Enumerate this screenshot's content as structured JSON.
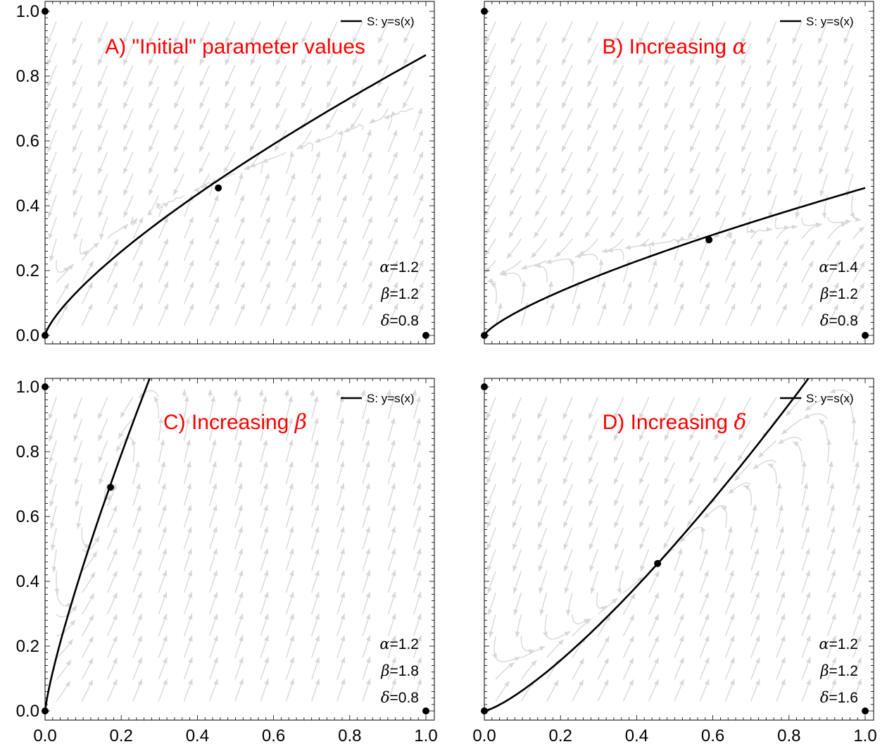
{
  "chart_data": [
    {
      "type": "line",
      "title": "A) \"Initial\" parameter values",
      "legend_label": "S: y=s(x)",
      "legend_position": "top-right",
      "params": [
        {
          "symbol": "α",
          "value": "=1.2"
        },
        {
          "symbol": "β",
          "value": "=1.2"
        },
        {
          "symbol": "δ",
          "value": "=0.8"
        }
      ],
      "xlim": [
        0,
        1
      ],
      "ylim": [
        0,
        1
      ],
      "x_ticks": [],
      "y_ticks": [
        "0.0",
        "0.2",
        "0.4",
        "0.6",
        "0.8",
        "1.0"
      ],
      "curve": {
        "exponent": 0.75,
        "coefficient": 0.865
      },
      "points": [
        [
          0,
          0
        ],
        [
          1,
          0
        ],
        [
          0,
          1
        ],
        [
          0.455,
          0.455
        ]
      ]
    },
    {
      "type": "line",
      "title": "B) Increasing",
      "title_symbol": "α",
      "legend_label": "S: y=s(x)",
      "legend_position": "top-right",
      "params": [
        {
          "symbol": "α",
          "value": "=1.4"
        },
        {
          "symbol": "β",
          "value": "=1.2"
        },
        {
          "symbol": "δ",
          "value": "=0.8"
        }
      ],
      "xlim": [
        0,
        1
      ],
      "ylim": [
        0,
        1
      ],
      "x_ticks": [],
      "y_ticks": [],
      "curve": {
        "exponent": 0.75,
        "coefficient": 0.455
      },
      "points": [
        [
          0,
          0
        ],
        [
          1,
          0
        ],
        [
          0,
          1
        ],
        [
          0.59,
          0.295
        ]
      ]
    },
    {
      "type": "line",
      "title": "C) Increasing",
      "title_symbol": "β",
      "legend_label": "S: y=s(x)",
      "legend_position": "top-right",
      "params": [
        {
          "symbol": "α",
          "value": "=1.2"
        },
        {
          "symbol": "β",
          "value": "=1.8"
        },
        {
          "symbol": "δ",
          "value": "=0.8"
        }
      ],
      "xlim": [
        0,
        1
      ],
      "ylim": [
        0,
        1
      ],
      "x_ticks": [
        "0.0",
        "0.2",
        "0.4",
        "0.6",
        "0.8",
        "1.0"
      ],
      "y_ticks": [
        "0.0",
        "0.2",
        "0.4",
        "0.6",
        "0.8",
        "1.0"
      ],
      "curve": {
        "exponent": 0.82,
        "coefficient": 2.96
      },
      "points": [
        [
          0,
          0
        ],
        [
          1,
          0
        ],
        [
          0,
          1
        ],
        [
          0.172,
          0.69
        ]
      ]
    },
    {
      "type": "line",
      "title": "D) Increasing",
      "title_symbol": "δ",
      "legend_label": "S: y=s(x)",
      "legend_position": "top-right",
      "params": [
        {
          "symbol": "α",
          "value": "=1.2"
        },
        {
          "symbol": "β",
          "value": "=1.2"
        },
        {
          "symbol": "δ",
          "value": "=1.6"
        }
      ],
      "xlim": [
        0,
        1
      ],
      "ylim": [
        0,
        1
      ],
      "x_ticks": [
        "0.0",
        "0.2",
        "0.4",
        "0.6",
        "0.8",
        "1.0"
      ],
      "y_ticks": [],
      "curve": {
        "exponent": 1.3,
        "coefficient": 1.265
      },
      "points": [
        [
          0,
          0
        ],
        [
          1,
          0
        ],
        [
          0,
          1
        ],
        [
          0.455,
          0.455
        ]
      ]
    }
  ]
}
